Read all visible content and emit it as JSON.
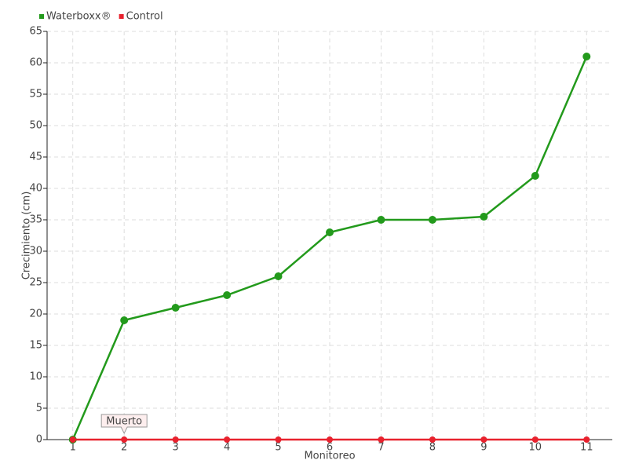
{
  "chart_data": {
    "type": "line",
    "x_label": "Monitoreo",
    "y_label": "Crecimiento (cm)",
    "categories": [
      "1",
      "2",
      "3",
      "4",
      "5",
      "6",
      "7",
      "8",
      "9",
      "10",
      "11"
    ],
    "series": [
      {
        "name": "Waterboxx®",
        "color": "#239a1c",
        "values": [
          0,
          19,
          21,
          23,
          26,
          33,
          35,
          35,
          35.5,
          42,
          61
        ]
      },
      {
        "name": "Control",
        "color": "#e8222e",
        "values": [
          0,
          0,
          0,
          0,
          0,
          0,
          0,
          0,
          0,
          0,
          0
        ]
      }
    ],
    "annotation": "Muerto",
    "ylim": [
      0,
      65
    ],
    "yticks": [
      0,
      5,
      10,
      15,
      20,
      25,
      30,
      35,
      40,
      45,
      50,
      55,
      60,
      65
    ],
    "grid": true,
    "legend": "top-left"
  }
}
